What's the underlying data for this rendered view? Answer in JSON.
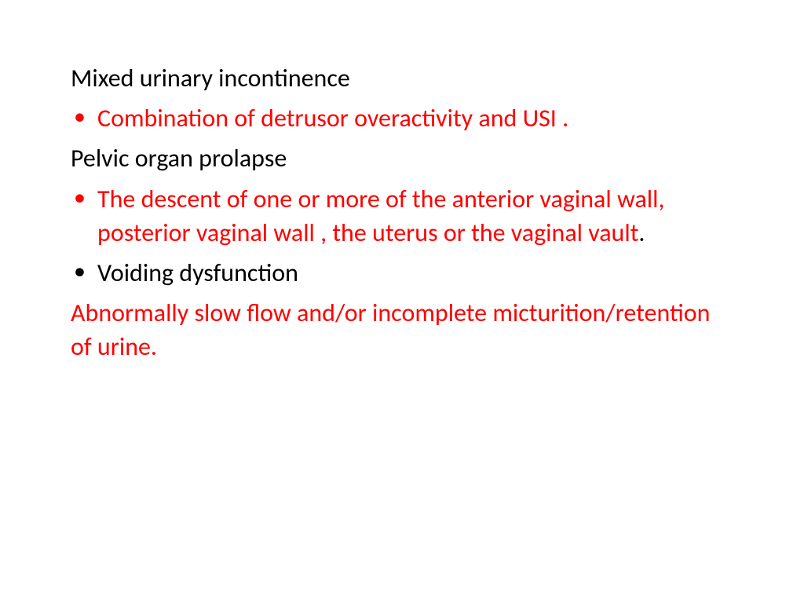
{
  "slide": {
    "background_color": "#ffffff",
    "text_color_primary": "#000000",
    "text_color_accent": "#ff0000",
    "font_family": "Calibri",
    "font_size_pt": 24,
    "heading1": "Mixed urinary incontinence",
    "bullet1": "Combination of detrusor overactivity and USI .",
    "heading2": "Pelvic organ prolapse",
    "bullet2_red": "The descent of one or more of the anterior vaginal wall, posterior vaginal wall , the uterus or the vaginal vault",
    "bullet2_period": ".",
    "bullet3": "Voiding dysfunction",
    "closing": "Abnormally slow flow and/or incomplete micturition/retention of urine."
  }
}
